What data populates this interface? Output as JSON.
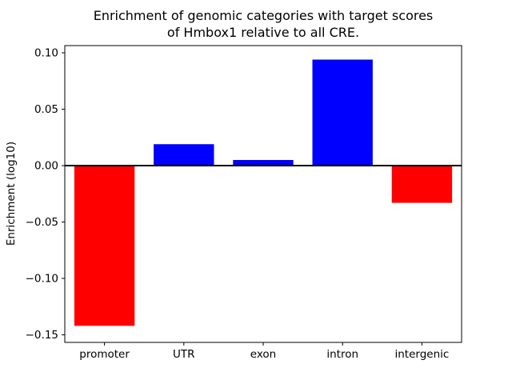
{
  "figure": {
    "title_line1": "Enrichment of genomic categories with target scores",
    "title_line2": "of Hmbox1 relative to all CRE.",
    "ylabel": "Enrichment (log10)"
  },
  "chart_data": {
    "type": "bar",
    "title": "Enrichment of genomic categories with target scores of Hmbox1 relative to all CRE.",
    "xlabel": "",
    "ylabel": "Enrichment (log10)",
    "categories": [
      "promoter",
      "UTR",
      "exon",
      "intron",
      "intergenic"
    ],
    "values": [
      -0.142,
      0.019,
      0.005,
      0.094,
      -0.033
    ],
    "positive_color": "#0000ff",
    "negative_color": "#ff0000",
    "bar_colors": [
      "#ff0000",
      "#0000ff",
      "#0000ff",
      "#0000ff",
      "#ff0000"
    ],
    "ylim": [
      -0.1567,
      0.1064
    ],
    "yticks": [
      0.1,
      0.05,
      0.0,
      -0.05,
      -0.1,
      -0.15
    ],
    "ytick_labels": [
      "0.10",
      "0.05",
      "0.00",
      "−0.05",
      "−0.10",
      "−0.15"
    ],
    "grid": false,
    "legend": null,
    "zero_line": true,
    "axis_color": "#000000",
    "background_color": "#ffffff"
  }
}
